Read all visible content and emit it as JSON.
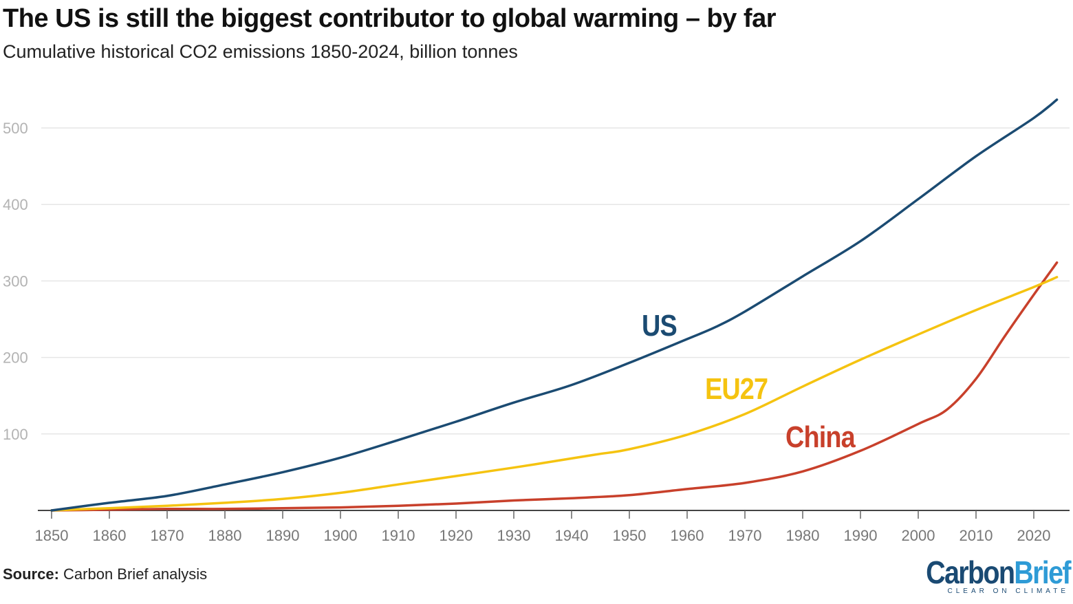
{
  "header": {
    "title": "The US is still the biggest contributor to global warming – by far",
    "subtitle": "Cumulative historical CO2 emissions 1850-2024, billion tonnes"
  },
  "footer": {
    "source_label": "Source:",
    "source_text": " Carbon Brief analysis",
    "logo_carbon": "Carbon",
    "logo_brief": "Brief",
    "logo_tagline": "CLEAR ON CLIMATE"
  },
  "colors": {
    "US": "#1b4b72",
    "EU27": "#f5c310",
    "China": "#c8402b",
    "grid": "#e6e6e6",
    "tick_label": "#b3b3b3",
    "axis": "#444444"
  },
  "chart_data": {
    "type": "line",
    "title": "The US is still the biggest contributor to global warming – by far",
    "subtitle": "Cumulative historical CO2 emissions 1850-2024, billion tonnes",
    "xlabel": "",
    "ylabel": "",
    "xlim": [
      1850,
      2026
    ],
    "ylim": [
      0,
      540
    ],
    "x_ticks": [
      1850,
      1860,
      1870,
      1880,
      1890,
      1900,
      1910,
      1920,
      1930,
      1940,
      1950,
      1960,
      1970,
      1980,
      1990,
      2000,
      2010,
      2020
    ],
    "y_ticks": [
      100,
      200,
      300,
      400,
      500
    ],
    "grid": true,
    "legend": "direct labels on lines",
    "series": [
      {
        "name": "US",
        "x": [
          1850,
          1860,
          1870,
          1880,
          1890,
          1900,
          1910,
          1920,
          1930,
          1940,
          1950,
          1960,
          1965,
          1970,
          1980,
          1990,
          2000,
          2010,
          2020,
          2024
        ],
        "y": [
          0,
          10,
          19,
          34,
          50,
          69,
          92,
          116,
          141,
          164,
          193,
          224,
          240,
          260,
          306,
          352,
          407,
          463,
          513,
          537
        ]
      },
      {
        "name": "EU27",
        "x": [
          1850,
          1860,
          1870,
          1880,
          1890,
          1900,
          1910,
          1920,
          1930,
          1940,
          1945,
          1950,
          1960,
          1970,
          1980,
          1990,
          2000,
          2010,
          2020,
          2024
        ],
        "y": [
          0,
          3,
          6,
          10,
          15,
          23,
          34,
          45,
          56,
          68,
          74,
          80,
          99,
          126,
          162,
          197,
          230,
          262,
          292,
          305
        ]
      },
      {
        "name": "China",
        "x": [
          1850,
          1860,
          1870,
          1880,
          1890,
          1900,
          1910,
          1920,
          1930,
          1940,
          1950,
          1960,
          1970,
          1980,
          1990,
          2000,
          2005,
          2010,
          2015,
          2020,
          2024
        ],
        "y": [
          0,
          1,
          2,
          2,
          3,
          4,
          6,
          9,
          13,
          16,
          20,
          28,
          36,
          51,
          78,
          113,
          132,
          172,
          228,
          282,
          324
        ]
      }
    ]
  }
}
